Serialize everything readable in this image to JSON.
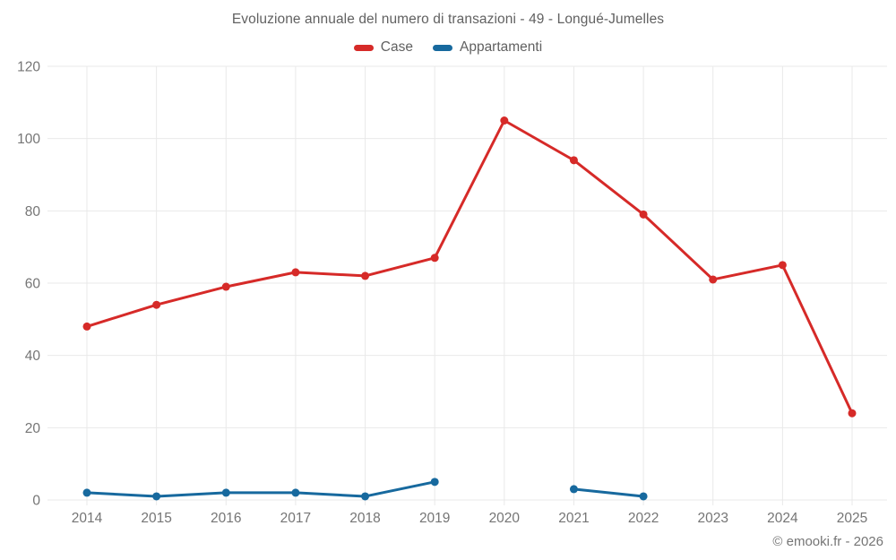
{
  "chart_data": {
    "type": "line",
    "title": "Evoluzione annuale del numero di transazioni - 49 - Longué-Jumelles",
    "categories": [
      "2014",
      "2015",
      "2016",
      "2017",
      "2018",
      "2019",
      "2020",
      "2021",
      "2022",
      "2023",
      "2024",
      "2025"
    ],
    "series": [
      {
        "name": "Case",
        "color": "#d62a28",
        "values": [
          48,
          54,
          59,
          63,
          62,
          67,
          105,
          94,
          79,
          61,
          65,
          24
        ]
      },
      {
        "name": "Appartamenti",
        "color": "#17699e",
        "values": [
          2,
          1,
          2,
          2,
          1,
          5,
          null,
          3,
          1,
          null,
          null,
          null
        ]
      }
    ],
    "xlabel": "",
    "ylabel": "",
    "ylim": [
      0,
      120
    ],
    "yticks": [
      0,
      20,
      40,
      60,
      80,
      100,
      120
    ],
    "grid": true,
    "legend_position": "top",
    "colors": {
      "grid_line": "#e9e9e9",
      "axis_text": "#757575",
      "title_text": "#616161"
    }
  },
  "footer": {
    "text": "© emooki.fr - 2026"
  }
}
